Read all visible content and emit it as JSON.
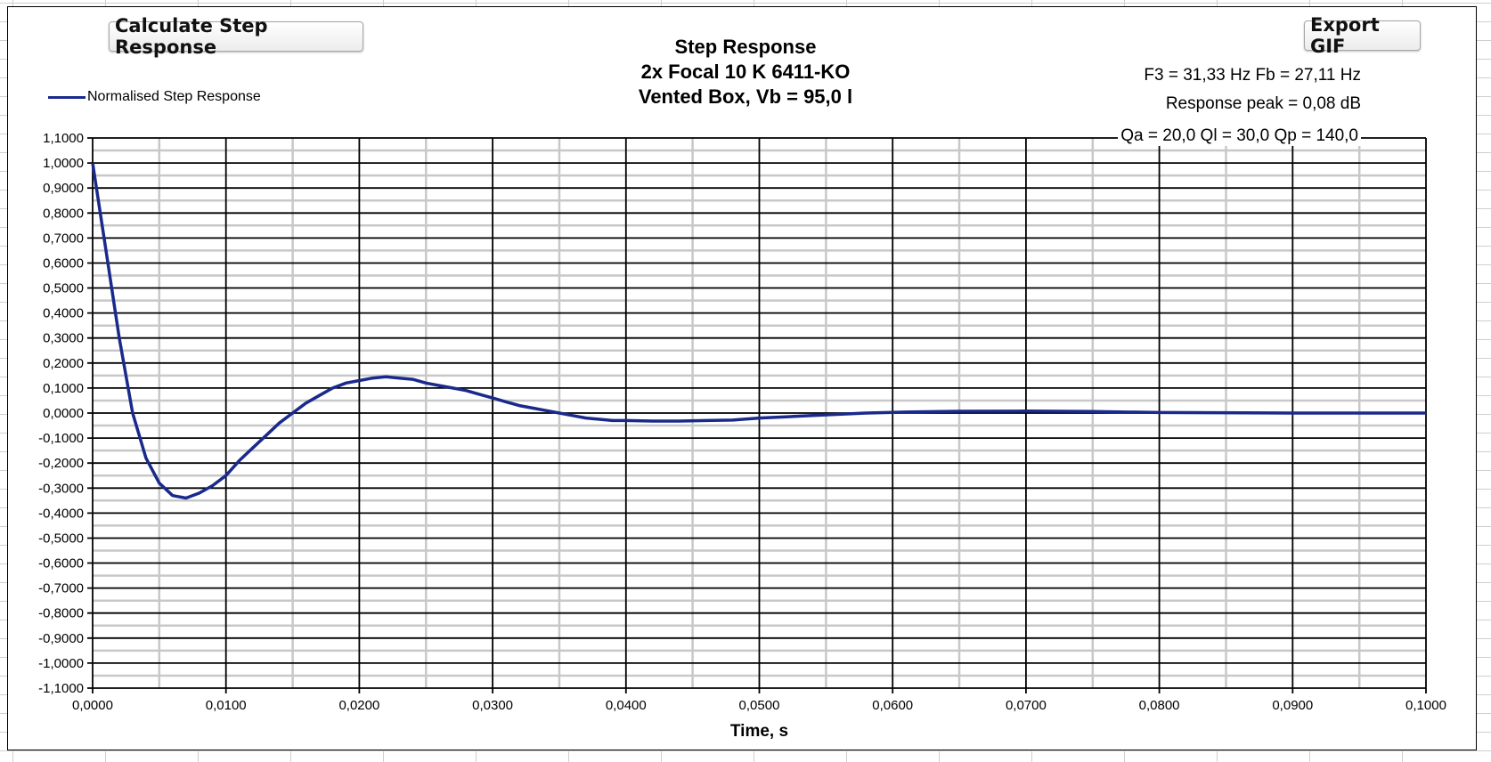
{
  "buttons": {
    "calculate_label": "Calculate Step Response",
    "export_label": "Export GIF"
  },
  "chart_data": {
    "type": "line",
    "title": "Step Response",
    "subtitle_lines": [
      "2x Focal 10 K 6411-KO",
      "Vented Box, Vb = 95,0 l"
    ],
    "annotations": [
      "F3 = 31,33 Hz  Fb = 27,11 Hz",
      "Response peak = 0,08 dB",
      "Qa = 20,0  Ql = 30,0  Qp = 140,0"
    ],
    "xlabel": "Time, s",
    "ylabel": "",
    "xlim": [
      0,
      0.1
    ],
    "ylim": [
      -1.1,
      1.1
    ],
    "x_ticks": [
      "0,0000",
      "0,0100",
      "0,0200",
      "0,0300",
      "0,0400",
      "0,0500",
      "0,0600",
      "0,0700",
      "0,0800",
      "0,0900",
      "0,1000"
    ],
    "y_ticks": [
      "1,1000",
      "1,0000",
      "0,9000",
      "0,8000",
      "0,7000",
      "0,6000",
      "0,5000",
      "0,4000",
      "0,3000",
      "0,2000",
      "0,1000",
      "0,0000",
      "-0,1000",
      "-0,2000",
      "-0,3000",
      "-0,4000",
      "-0,5000",
      "-0,6000",
      "-0,7000",
      "-0,8000",
      "-0,9000",
      "-1,0000",
      "-1,1000"
    ],
    "grid": true,
    "legend_position": "top-left",
    "series_color": "#1a2a8c",
    "series": [
      {
        "name": "Normalised Step Response",
        "x": [
          0,
          0.001,
          0.002,
          0.003,
          0.004,
          0.005,
          0.006,
          0.007,
          0.008,
          0.009,
          0.01,
          0.011,
          0.012,
          0.013,
          0.014,
          0.015,
          0.016,
          0.017,
          0.018,
          0.019,
          0.02,
          0.021,
          0.022,
          0.023,
          0.024,
          0.025,
          0.026,
          0.027,
          0.028,
          0.029,
          0.03,
          0.031,
          0.032,
          0.033,
          0.034,
          0.035,
          0.036,
          0.037,
          0.038,
          0.039,
          0.04,
          0.042,
          0.044,
          0.046,
          0.048,
          0.05,
          0.052,
          0.054,
          0.056,
          0.058,
          0.06,
          0.062,
          0.065,
          0.07,
          0.075,
          0.08,
          0.09,
          0.1
        ],
        "values": [
          1.0,
          0.65,
          0.3,
          0.0,
          -0.18,
          -0.28,
          -0.33,
          -0.34,
          -0.32,
          -0.29,
          -0.25,
          -0.19,
          -0.14,
          -0.09,
          -0.04,
          0.0,
          0.04,
          0.07,
          0.1,
          0.12,
          0.13,
          0.14,
          0.145,
          0.14,
          0.135,
          0.12,
          0.11,
          0.1,
          0.09,
          0.075,
          0.06,
          0.045,
          0.03,
          0.02,
          0.01,
          0.0,
          -0.01,
          -0.02,
          -0.025,
          -0.03,
          -0.03,
          -0.032,
          -0.032,
          -0.03,
          -0.028,
          -0.02,
          -0.015,
          -0.01,
          -0.005,
          0.0,
          0.003,
          0.005,
          0.007,
          0.008,
          0.006,
          0.002,
          0.0,
          0.0
        ]
      }
    ]
  }
}
